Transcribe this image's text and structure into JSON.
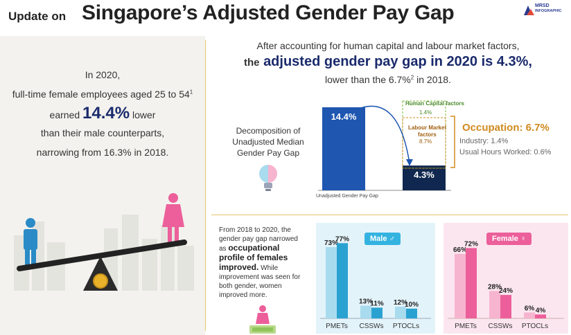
{
  "header": {
    "title_prefix": "Update on",
    "title_main": "Singapore’s Adjusted Gender Pay Gap",
    "logo_line1": "MRSD",
    "logo_line2": "INFOGRAPHIC"
  },
  "left": {
    "line1": "In 2020,",
    "line2": "full-time female employees aged 25 to 54",
    "line2_sup": "1",
    "line3_pre": "earned",
    "line3_value": "14.4%",
    "line3_post": "lower",
    "line4": "than their male counterparts,",
    "line5": "narrowing from 16.3% in 2018."
  },
  "adjusted": {
    "line1": "After accounting for human capital and labour market factors,",
    "line2_pre": "the",
    "line2_main": "adjusted gender pay gap in 2020 is 4.3%,",
    "line3_pre": "lower than the 6.7%",
    "line3_sup": "2",
    "line3_post": "in 2018."
  },
  "decomposition": {
    "label_line1": "Decomposition of",
    "label_line2": "Unadjusted Median",
    "label_line3": "Gender Pay Gap",
    "axis_label": "Unadjusted Gender Pay Gap",
    "hc_label": "Human Capital factors",
    "hc_value": "1.4%",
    "lm_label_line1": "Labour Market",
    "lm_label_line2": "factors",
    "lm_value": "8.7%",
    "occupation_label": "Occupation: 6.7%",
    "industry_label": "Industry: 1.4%",
    "hours_label": "Usual Hours Worked: 0.6%"
  },
  "note": {
    "text1": "From 2018 to 2020, the gender pay gap narrowed as",
    "bold": "occupational profile of females improved.",
    "text2": "While improvement was seen for both gender, women improved more."
  },
  "male_panel": {
    "badge": "Male",
    "symbol": "♂"
  },
  "female_panel": {
    "badge": "Female",
    "symbol": "♀"
  },
  "colors": {
    "navy": "#1a2a6c",
    "bar_blue": "#1e56b0",
    "bar_dark": "#10284f",
    "orange": "#d08a1f",
    "green_dash": "#79b83a",
    "male_dark": "#2aa2d1",
    "male_light": "#a9dbee",
    "female_dark": "#ec5f9a",
    "female_light": "#f7b4cf",
    "badge_male": "#35b3e0",
    "badge_female": "#ec5f9a"
  },
  "chart_data": [
    {
      "type": "bar",
      "categories": [
        "",
        ""
      ],
      "values": [
        14.4,
        4.3
      ],
      "value_labels": [
        "14.4%",
        "4.3%"
      ],
      "xlabel": "Unadjusted Gender Pay Gap",
      "ylim": [
        0,
        15
      ]
    },
    {
      "type": "bar",
      "categories": [
        "PMETs",
        "CSSWs",
        "PTOCLs"
      ],
      "series": [
        {
          "values": [
            73,
            13,
            12
          ],
          "labels": [
            "73%",
            "13%",
            "12%"
          ]
        },
        {
          "values": [
            77,
            11,
            10
          ],
          "labels": [
            "77%",
            "11%",
            "10%"
          ]
        }
      ],
      "ylim": [
        0,
        85
      ]
    },
    {
      "type": "bar",
      "categories": [
        "PMETs",
        "CSSWs",
        "PTOCLs"
      ],
      "series": [
        {
          "values": [
            66,
            28,
            6
          ],
          "labels": [
            "66%",
            "28%",
            "6%"
          ]
        },
        {
          "values": [
            72,
            24,
            4
          ],
          "labels": [
            "72%",
            "24%",
            "4%"
          ]
        }
      ],
      "ylim": [
        0,
        85
      ]
    }
  ]
}
